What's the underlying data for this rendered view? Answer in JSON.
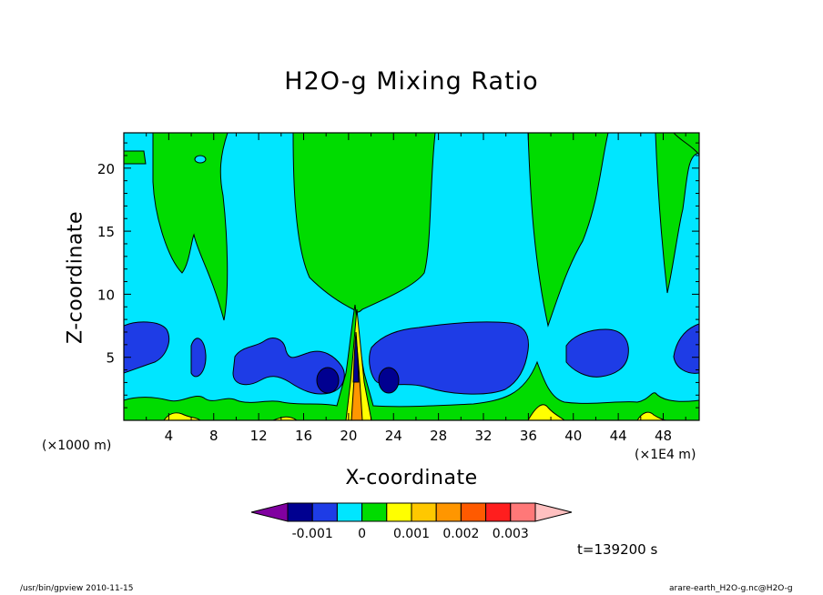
{
  "title": "H2O-g Mixing Ratio",
  "xlabel": "X-coordinate",
  "ylabel": "Z-coordinate",
  "x_unit": "(×1E4 m)",
  "y_unit": "(×1000 m)",
  "time_label": "t=139200 s",
  "footer_left": "/usr/bin/gpview   2010-11-15",
  "footer_right": "arare-earth_H2O-g.nc@H2O-g",
  "chart_data": {
    "type": "heatmap",
    "title": "H2O-g Mixing Ratio",
    "xlabel": "X-coordinate",
    "ylabel": "Z-coordinate",
    "xlim": [
      0,
      51.2
    ],
    "ylim": [
      0,
      22.8
    ],
    "x_ticks": [
      4,
      8,
      12,
      16,
      20,
      24,
      28,
      32,
      36,
      40,
      44,
      48
    ],
    "y_ticks": [
      5,
      10,
      15,
      20
    ],
    "grid": false,
    "colorbar": {
      "orientation": "horizontal",
      "placement": "bottom",
      "colors": [
        "#8000a0",
        "#000090",
        "#1e3ce6",
        "#00e6ff",
        "#00dc00",
        "#ffff00",
        "#ffc800",
        "#ff9600",
        "#ff5a00",
        "#ff1e1e",
        "#ff7878",
        "#ffc0c0"
      ],
      "tick_labels": [
        "-0.001",
        "0",
        "0.001",
        "0.002",
        "0.003"
      ],
      "tick_positions": [
        -0.001,
        0,
        0.001,
        0.002,
        0.003
      ],
      "interval": 0.0005,
      "extend": "both"
    },
    "regions": [
      {
        "level": "0 to 0.0005",
        "color": "#00dc00",
        "desc": "upper moist column near x=20 and plumes at x=4-8, 36-38, 48; surface band"
      },
      {
        "level": "-0.0005 to 0",
        "color": "#00e6ff",
        "desc": "background"
      },
      {
        "level": "-0.001 to -0.0005",
        "color": "#1e3ce6",
        "desc": "mid-level dry patches z=2-8"
      },
      {
        "level": "< -0.001",
        "color": "#000090",
        "desc": "small cores near x=18, 23 at z=3"
      },
      {
        "level": "0.0005 to 0.001",
        "color": "#ffff00",
        "desc": "near surface and updraft at x=21"
      }
    ]
  }
}
